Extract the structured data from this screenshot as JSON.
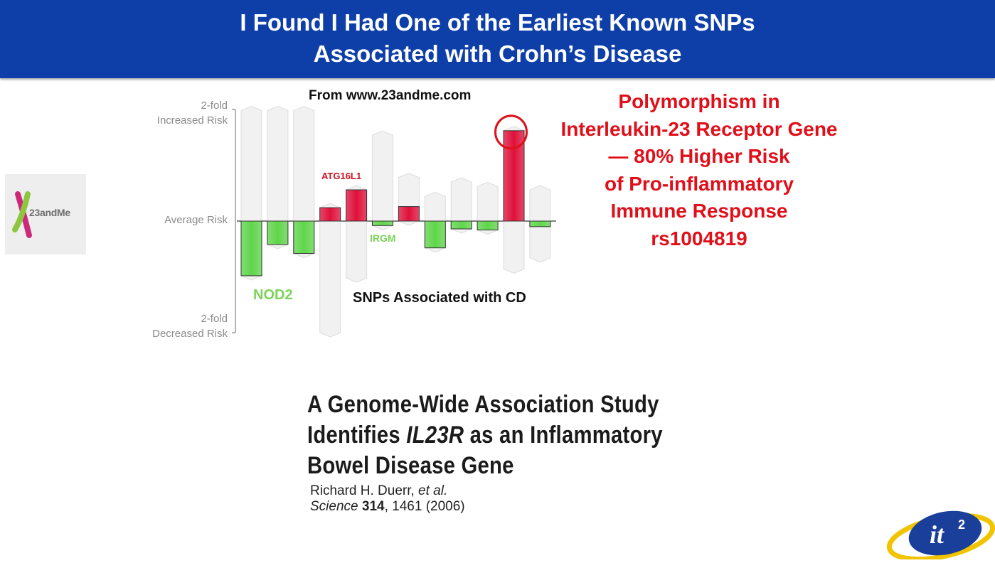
{
  "slide": {
    "title_line1": "I Found I Had One of the Earliest Known SNPs",
    "title_line2": "Associated with Crohn’s Disease"
  },
  "logo_23andme": {
    "text": "23andMe",
    "icon": "23andme-x-icon"
  },
  "chart_data": {
    "type": "bar",
    "source_note": "From www.23andme.com",
    "xlabel": "SNPs Associated with CD",
    "y_tick_labels": [
      [
        "2-fold",
        "Increased Risk"
      ],
      [
        "Average Risk"
      ],
      [
        "2-fold",
        "Decreased Risk"
      ]
    ],
    "y_scale": "log2 relative risk",
    "ylim": [
      -1,
      1
    ],
    "bar_labels": {
      "atg16l1": "ATG16L1",
      "irgm": "IRGM",
      "nod2": "NOD2"
    },
    "bars": [
      {
        "value": -0.49,
        "range": [
          -0.49,
          0.99
        ]
      },
      {
        "value": -0.21,
        "range": [
          -0.21,
          0.99
        ]
      },
      {
        "value": -0.29,
        "range": [
          -0.29,
          0.99
        ]
      },
      {
        "value": 0.12,
        "range": [
          -1.0,
          0.12
        ]
      },
      {
        "value": 0.28,
        "range": [
          -0.51,
          0.28
        ]
      },
      {
        "value": -0.04,
        "range": [
          -0.04,
          0.77
        ]
      },
      {
        "value": 0.13,
        "range": [
          0,
          0.39
        ]
      },
      {
        "value": -0.24,
        "range": [
          -0.24,
          0.22
        ]
      },
      {
        "value": -0.07,
        "range": [
          -0.07,
          0.35
        ]
      },
      {
        "value": -0.08,
        "range": [
          -0.08,
          0.31
        ]
      },
      {
        "value": 0.81,
        "range": [
          -0.43,
          0.81
        ],
        "highlight": true
      },
      {
        "value": -0.05,
        "range": [
          -0.33,
          0.28
        ]
      }
    ],
    "colors": {
      "increased": "#e0103a",
      "decreased": "#5fd64a",
      "range": "#f1f1f1",
      "axis": "#9a9a9a",
      "highlight_ring": "#e0101a"
    }
  },
  "callout": {
    "lines": [
      "Polymorphism in",
      "Interleukin-23 Receptor Gene",
      "— 80% Higher Risk",
      "of Pro-inflammatory",
      "Immune Response",
      "rs1004819"
    ],
    "color": "#e0101a"
  },
  "paper": {
    "title_line1": "A Genome-Wide Association Study",
    "title_line2_pre": "Identifies ",
    "title_line2_italic": "IL23R",
    "title_line2_post": " as an Inflammatory",
    "title_line3": "Bowel Disease Gene",
    "authors_name": "Richard H. Duerr, ",
    "authors_etal": "et al.",
    "journal": "Science",
    "volume": "314",
    "pages_year": ", 1461 (2006)"
  },
  "logo_it2": {
    "text": "it",
    "superscript": "2",
    "icon": "it2-logo-icon"
  }
}
